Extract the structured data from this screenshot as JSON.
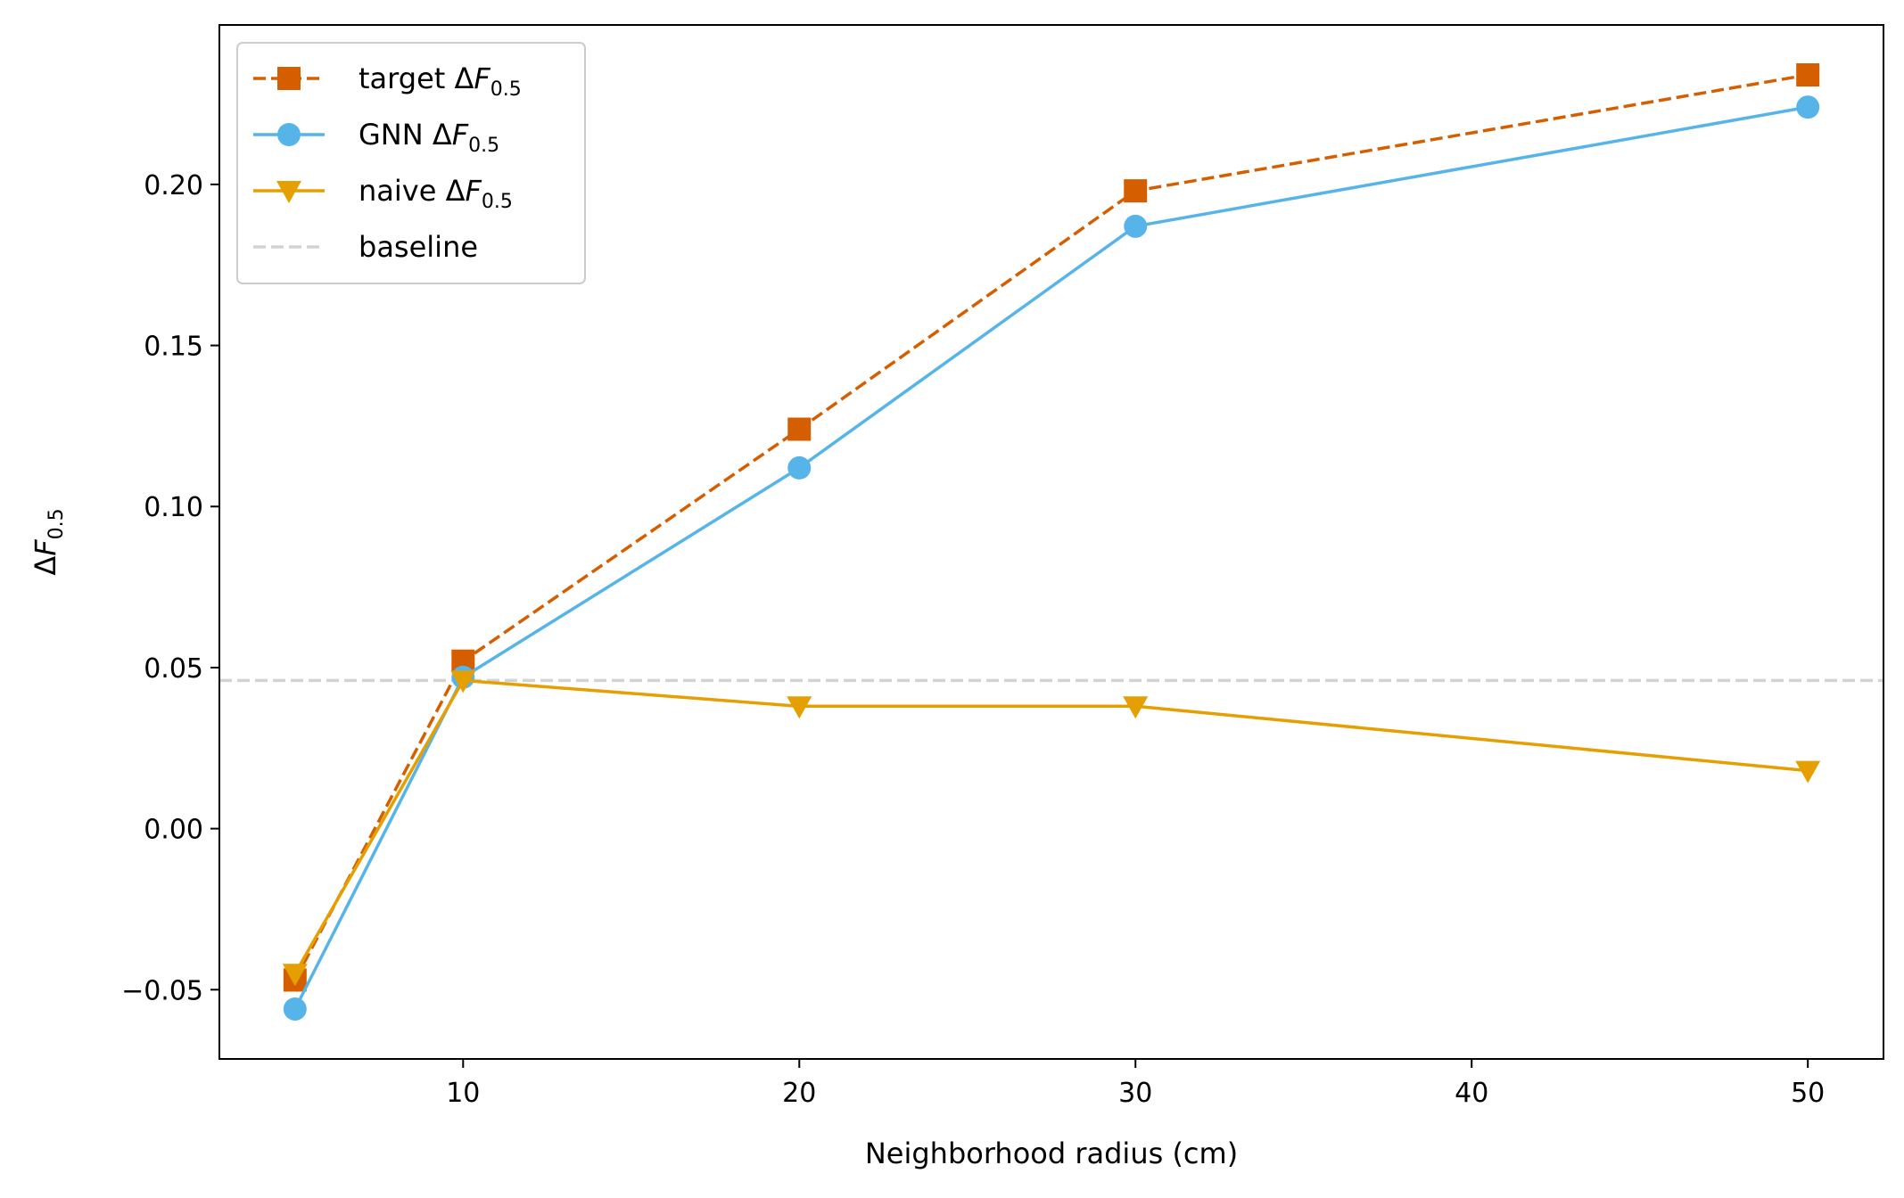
{
  "chart_data": {
    "type": "line",
    "x": [
      5,
      10,
      20,
      30,
      50
    ],
    "xlim": [
      2.75,
      52.25
    ],
    "ylim": [
      -0.0715,
      0.2495
    ],
    "xticks": [
      10,
      20,
      30,
      40,
      50
    ],
    "yticks": [
      -0.05,
      0.0,
      0.05,
      0.1,
      0.15,
      0.2
    ],
    "xtick_labels": [
      "10",
      "20",
      "30",
      "40",
      "50"
    ],
    "ytick_labels": [
      "−0.05",
      "0.00",
      "0.05",
      "0.10",
      "0.15",
      "0.20"
    ],
    "xlabel": "Neighborhood radius (cm)",
    "ylabel": {
      "prefix": "Δ",
      "var": "F",
      "sub": "0.5"
    },
    "grid": false,
    "legend_position": "upper-left",
    "series": [
      {
        "name": {
          "prefix": "target Δ",
          "var": "F",
          "sub": "0.5"
        },
        "values": [
          -0.047,
          0.052,
          0.124,
          0.198,
          0.234
        ],
        "color": "#d55e00",
        "marker": "square",
        "linestyle": "dashed"
      },
      {
        "name": {
          "prefix": "GNN Δ",
          "var": "F",
          "sub": "0.5"
        },
        "values": [
          -0.056,
          0.047,
          0.112,
          0.187,
          0.224
        ],
        "color": "#56b4e9",
        "marker": "circle",
        "linestyle": "solid"
      },
      {
        "name": {
          "prefix": "naive Δ",
          "var": "F",
          "sub": "0.5"
        },
        "values": [
          -0.045,
          0.046,
          0.038,
          0.038,
          0.018
        ],
        "color": "#e69f00",
        "marker": "triangle-down",
        "linestyle": "solid"
      }
    ],
    "baseline": {
      "name": "baseline",
      "value": 0.046,
      "color": "#d3d3d3",
      "linestyle": "dashed"
    }
  }
}
